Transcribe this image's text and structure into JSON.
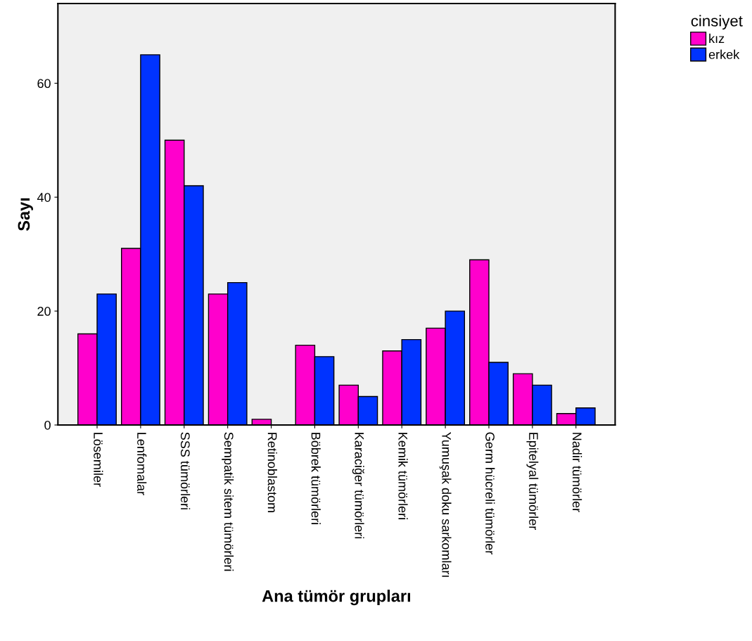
{
  "chart_data": {
    "type": "bar",
    "xlabel": "Ana tümör grupları",
    "ylabel": "Sayı",
    "legend_title": "cinsiyet",
    "categories": [
      "Lösemiler",
      "Lenfomalar",
      "SSS tümörleri",
      "Sempatik sitem tümörleri",
      "Retinoblastom",
      "Böbrek tümörleri",
      "Karaciğer tümörleri",
      "Kemik tümörleri",
      "Yumuşak doku sarkomları",
      "Germ hücreli tümörler",
      "Epitelyal tümörler",
      "Nadir tümörler"
    ],
    "series": [
      {
        "name": "kız",
        "color": "#ff00cc",
        "values": [
          16,
          31,
          50,
          23,
          1,
          14,
          7,
          13,
          17,
          29,
          9,
          2
        ]
      },
      {
        "name": "erkek",
        "color": "#0033ff",
        "values": [
          23,
          65,
          42,
          25,
          null,
          12,
          5,
          15,
          20,
          11,
          7,
          3
        ]
      }
    ],
    "ylim": [
      0,
      74
    ],
    "yticks": [
      0,
      20,
      40,
      60
    ],
    "grid": false,
    "legend": "top right"
  }
}
